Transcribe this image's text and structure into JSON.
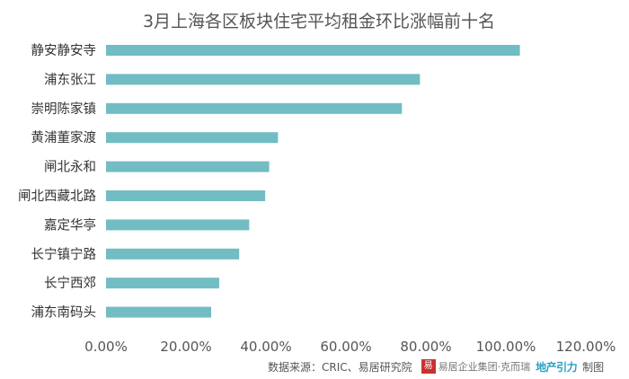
{
  "chart_data": {
    "type": "bar",
    "orientation": "horizontal",
    "title": "3月上海各区板块住宅平均租金环比涨幅前十名",
    "categories": [
      "静安静安寺",
      "浦东张江",
      "崇明陈家镇",
      "黄浦董家渡",
      "闸北永和",
      "闸北西藏北路",
      "嘉定华亭",
      "长宁镇宁路",
      "长宁西郊",
      "浦东南码头"
    ],
    "values": [
      103.5,
      78.5,
      74.0,
      43.0,
      40.8,
      39.8,
      35.8,
      33.3,
      28.3,
      26.3
    ],
    "xlim": [
      0,
      120
    ],
    "x_ticks": [
      "0.00%",
      "20.00%",
      "40.00%",
      "60.00%",
      "80.00%",
      "100.00%",
      "120.00%"
    ],
    "xlabel": "",
    "ylabel": "",
    "grid": false,
    "bar_color": "#72bcc3"
  },
  "footer": {
    "source": "数据来源：CRIC、易居研究院",
    "logo_mark": "易",
    "brand_text": "易居企业集团·克而瑞",
    "wordmark": "地产引力",
    "suffix": "制图"
  }
}
